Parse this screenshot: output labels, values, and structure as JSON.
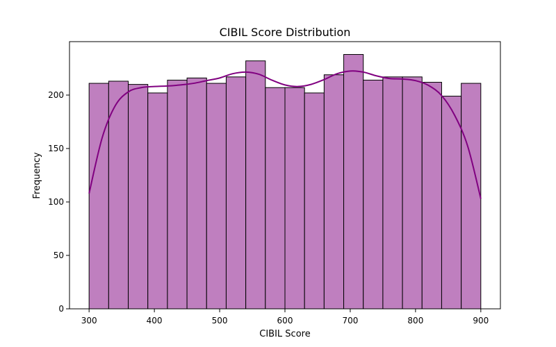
{
  "chart_data": {
    "type": "bar",
    "title": "CIBIL Score Distribution",
    "xlabel": "CIBIL Score",
    "ylabel": "Frequency",
    "xlim": [
      270,
      930
    ],
    "ylim": [
      0,
      250
    ],
    "x_ticks": [
      300,
      400,
      500,
      600,
      700,
      800,
      900
    ],
    "y_ticks": [
      0,
      50,
      100,
      150,
      200
    ],
    "bin_edges": [
      300,
      330,
      360,
      390,
      420,
      450,
      480,
      510,
      540,
      570,
      600,
      630,
      660,
      690,
      720,
      750,
      780,
      810,
      840,
      870,
      900
    ],
    "values": [
      211,
      213,
      210,
      202,
      214,
      216,
      211,
      217,
      232,
      207,
      207,
      202,
      219,
      238,
      214,
      217,
      217,
      212,
      199,
      211
    ],
    "kde": {
      "x": [
        300,
        320,
        340,
        360,
        380,
        400,
        420,
        440,
        460,
        480,
        500,
        520,
        540,
        560,
        580,
        600,
        620,
        640,
        660,
        680,
        700,
        720,
        740,
        760,
        780,
        800,
        820,
        840,
        860,
        880,
        900
      ],
      "y": [
        108,
        160,
        190,
        203,
        207,
        208,
        208.5,
        209.5,
        211,
        213.5,
        216,
        220,
        221.5,
        219.5,
        214,
        209.5,
        208,
        210,
        214.5,
        220,
        222.5,
        221.5,
        218,
        215.5,
        215,
        213.5,
        209,
        199.5,
        181,
        152,
        103
      ]
    },
    "colors": {
      "bar_fill": "#bf7fbf",
      "bar_edge": "#000000",
      "kde_line": "#800080"
    },
    "grid": false,
    "legend": "none"
  }
}
